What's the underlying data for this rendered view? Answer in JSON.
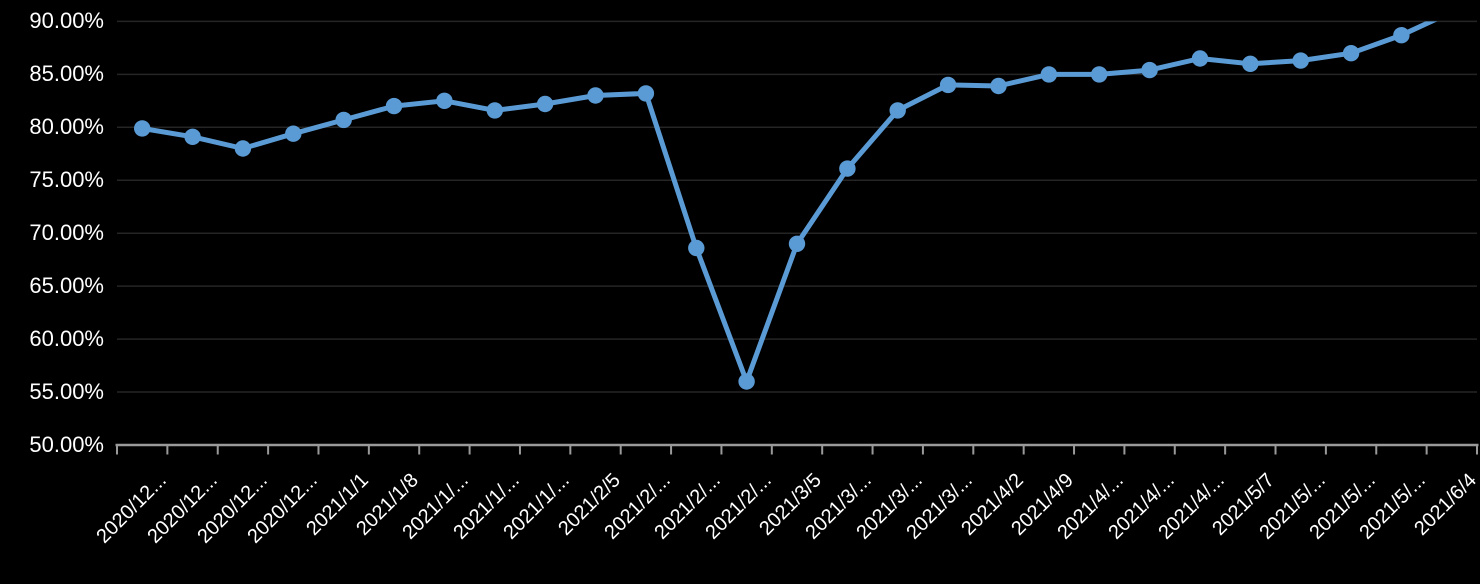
{
  "chart_data": {
    "type": "line",
    "title": "",
    "legend": "none",
    "grid": true,
    "value_format": "percent-2-decimals",
    "ylim": [
      50,
      90
    ],
    "y_tick_labels": [
      "90.00%",
      "85.00%",
      "80.00%",
      "75.00%",
      "70.00%",
      "65.00%",
      "60.00%",
      "55.00%",
      "50.00%"
    ],
    "y_tick_values": [
      90,
      85,
      80,
      75,
      70,
      65,
      60,
      55,
      50
    ],
    "categories": [
      "2020/12...",
      "2020/12...",
      "2020/12...",
      "2020/12...",
      "2021/1/1",
      "2021/1/8",
      "2021/1/...",
      "2021/1/...",
      "2021/1/...",
      "2021/2/5",
      "2021/2/...",
      "2021/2/...",
      "2021/2/...",
      "2021/3/5",
      "2021/3/...",
      "2021/3/...",
      "2021/3/...",
      "2021/4/2",
      "2021/4/9",
      "2021/4/...",
      "2021/4/...",
      "2021/4/...",
      "2021/5/7",
      "2021/5/...",
      "2021/5/...",
      "2021/5/...",
      "2021/6/4"
    ],
    "values": [
      79.9,
      79.1,
      78.0,
      79.4,
      80.7,
      82.0,
      82.5,
      81.6,
      82.2,
      83.0,
      83.2,
      68.6,
      56.0,
      69.0,
      76.1,
      81.6,
      84.0,
      83.9,
      85.0,
      85.0,
      85.4,
      86.5,
      86.0,
      86.3,
      87.0,
      88.7,
      90.9
    ],
    "last_point_clipped_at_axis_max": true,
    "colors": {
      "background": "#000000",
      "line": "#5b9bd5",
      "marker": "#5b9bd5",
      "gridline": "#252525",
      "axis": "#9a9a9a",
      "text": "#ffffff"
    }
  }
}
